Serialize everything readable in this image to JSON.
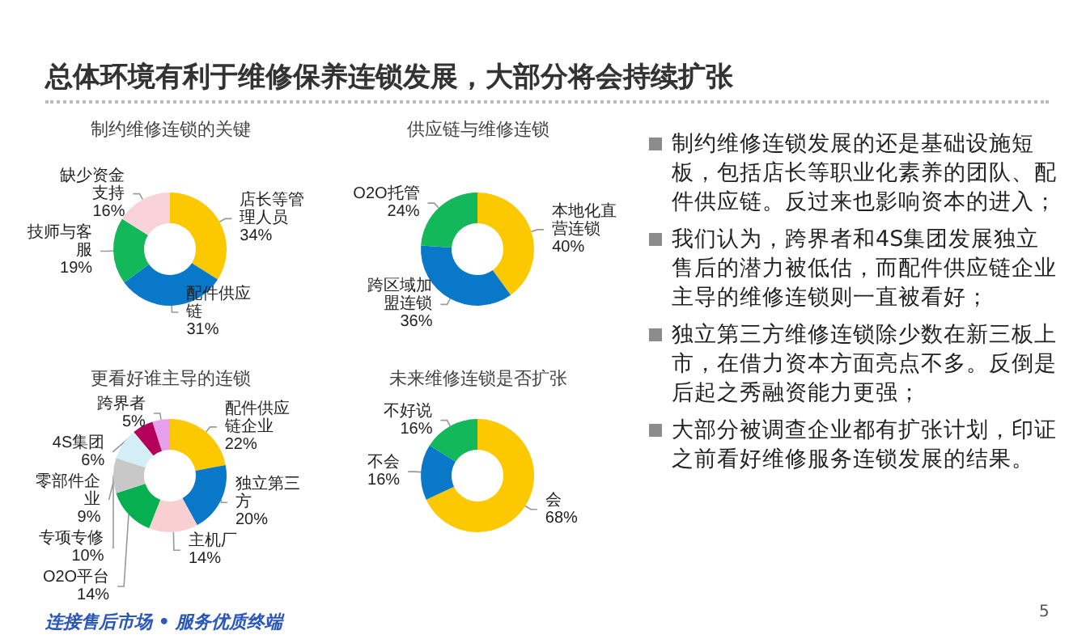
{
  "chart_data": [
    {
      "type": "other",
      "title": "总体环境有利于维修保养连锁发展，大部分将会持续扩张",
      "annotations": [
        "制约维修连锁发展的还是基础设施短板，包括店长等职业化素养的团队、配件供应链。反过来也影响资本的进入；",
        "我们认为，跨界者和4S集团发展独立售后的潜力被低估，而配件供应链企业主导的维修连锁则一直被看好；",
        "独立第三方维修连锁除少数在新三板上市，在借力资本方面亮点不多。反倒是后起之秀融资能力更强；",
        "大部分被调查企业都有扩张计划，印证之前看好维修服务连锁发展的结果。",
        "连接售后市场 • 服务优质终端",
        "5"
      ]
    },
    {
      "type": "donut",
      "title": "制约维修连锁的关键",
      "categories": [
        "店长等管理人员",
        "配件供应链",
        "技师与客服",
        "缺少资金支持"
      ],
      "values": [
        34,
        31,
        19,
        16
      ],
      "value_labels": [
        "34%",
        "31%",
        "19%",
        "16%"
      ],
      "colors": [
        "#fcc900",
        "#0a78c8",
        "#12b85a",
        "#fad2da"
      ]
    },
    {
      "type": "donut",
      "title": "供应链与维修连锁",
      "categories": [
        "本地化直营连锁",
        "跨区域加盟连锁",
        "O2O托管"
      ],
      "values": [
        40,
        36,
        24
      ],
      "value_labels": [
        "40%",
        "36%",
        "24%"
      ],
      "colors": [
        "#fcc900",
        "#0a78c8",
        "#12b85a"
      ]
    },
    {
      "type": "donut",
      "title": "更看好谁主导的连锁",
      "categories": [
        "配件供应链企业",
        "独立第三方",
        "主机厂",
        "O2O平台",
        "专项专修",
        "零部件企业",
        "4S集团",
        "跨界者"
      ],
      "values": [
        22,
        20,
        14,
        14,
        10,
        9,
        6,
        5
      ],
      "value_labels": [
        "22%",
        "20%",
        "14%",
        "14%",
        "10%",
        "9%",
        "6%",
        "5%"
      ],
      "colors": [
        "#fcc900",
        "#0a78c8",
        "#f9cfd2",
        "#06b050",
        "#c8c8c8",
        "#d4eef8",
        "#b4005a",
        "#e6a0ec"
      ]
    },
    {
      "type": "donut",
      "title": "未来维修连锁是否扩张",
      "categories": [
        "会",
        "不会",
        "不好说"
      ],
      "values": [
        68,
        16,
        16
      ],
      "value_labels": [
        "68%",
        "16%",
        "16%"
      ],
      "colors": [
        "#fcc900",
        "#0a78c8",
        "#12b85a"
      ]
    }
  ]
}
